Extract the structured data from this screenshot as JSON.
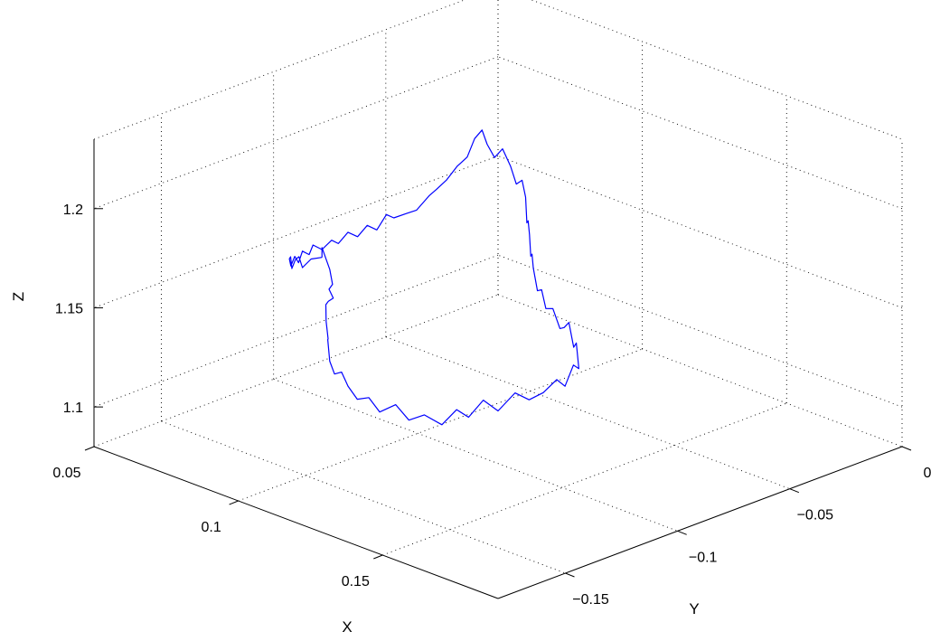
{
  "chart_data": {
    "type": "line",
    "projection": "3d",
    "grid": true,
    "xlabel": "X",
    "ylabel": "Y",
    "zlabel": "Z",
    "xlim": [
      0.05,
      0.19
    ],
    "ylim": [
      -0.18,
      0
    ],
    "zlim": [
      1.08,
      1.235
    ],
    "x_ticks": [
      {
        "value": 0.05,
        "label": "0.05"
      },
      {
        "value": 0.1,
        "label": "0.1"
      },
      {
        "value": 0.15,
        "label": "0.15"
      }
    ],
    "y_ticks": [
      {
        "value": -0.15,
        "label": "−0.15"
      },
      {
        "value": -0.1,
        "label": "−0.1"
      },
      {
        "value": -0.05,
        "label": "−0.05"
      },
      {
        "value": 0,
        "label": "0"
      }
    ],
    "z_ticks": [
      {
        "value": 1.1,
        "label": "1.1"
      },
      {
        "value": 1.15,
        "label": "1.15"
      },
      {
        "value": 1.2,
        "label": "1.2"
      }
    ],
    "series": [
      {
        "color": "#0000ff",
        "x": [
          0.08,
          0.08,
          0.085,
          0.086,
          0.084,
          0.087,
          0.083,
          0.086,
          0.09,
          0.093,
          0.096,
          0.099,
          0.103,
          0.107,
          0.11,
          0.114,
          0.118,
          0.121,
          0.125,
          0.128,
          0.131,
          0.134,
          0.136,
          0.137,
          0.139,
          0.141,
          0.143,
          0.144,
          0.145,
          0.145,
          0.144,
          0.143,
          0.141,
          0.137,
          0.133,
          0.129,
          0.125,
          0.122,
          0.118,
          0.114,
          0.111,
          0.108,
          0.105,
          0.103,
          0.101,
          0.099,
          0.097,
          0.095,
          0.093,
          0.091,
          0.089,
          0.087,
          0.085,
          0.083,
          0.082,
          0.081,
          0.08,
          0.079,
          0.077,
          0.075,
          0.073,
          0.072,
          0.07,
          0.068,
          0.066,
          0.065,
          0.064,
          0.063,
          0.062,
          0.061,
          0.06,
          0.06,
          0.059,
          0.059,
          0.06,
          0.06,
          0.061,
          0.062,
          0.063,
          0.064,
          0.066,
          0.068,
          0.07,
          0.072,
          0.074,
          0.077,
          0.08
        ],
        "y": [
          -0.117,
          -0.117,
          -0.12,
          -0.12,
          -0.119,
          -0.121,
          -0.118,
          -0.123,
          -0.128,
          -0.131,
          -0.135,
          -0.138,
          -0.141,
          -0.143,
          -0.144,
          -0.145,
          -0.145,
          -0.144,
          -0.142,
          -0.14,
          -0.137,
          -0.133,
          -0.129,
          -0.125,
          -0.121,
          -0.117,
          -0.112,
          -0.107,
          -0.102,
          -0.096,
          -0.091,
          -0.086,
          -0.081,
          -0.077,
          -0.073,
          -0.07,
          -0.067,
          -0.065,
          -0.063,
          -0.061,
          -0.059,
          -0.057,
          -0.055,
          -0.053,
          -0.051,
          -0.049,
          -0.047,
          -0.045,
          -0.043,
          -0.042,
          -0.042,
          -0.042,
          -0.043,
          -0.044,
          -0.046,
          -0.047,
          -0.049,
          -0.051,
          -0.053,
          -0.055,
          -0.057,
          -0.059,
          -0.062,
          -0.064,
          -0.067,
          -0.069,
          -0.072,
          -0.075,
          -0.078,
          -0.081,
          -0.084,
          -0.087,
          -0.09,
          -0.094,
          -0.097,
          -0.1,
          -0.103,
          -0.106,
          -0.109,
          -0.111,
          -0.113,
          -0.115,
          -0.116,
          -0.117,
          -0.118,
          -0.118,
          -0.117
        ],
        "z": [
          1.165,
          1.17,
          1.163,
          1.156,
          1.152,
          1.15,
          1.145,
          1.147,
          1.143,
          1.137,
          1.14,
          1.132,
          1.129,
          1.133,
          1.128,
          1.124,
          1.127,
          1.121,
          1.126,
          1.119,
          1.122,
          1.117,
          1.124,
          1.119,
          1.127,
          1.121,
          1.129,
          1.124,
          1.126,
          1.13,
          1.124,
          1.132,
          1.127,
          1.136,
          1.13,
          1.139,
          1.133,
          1.13,
          1.137,
          1.134,
          1.141,
          1.138,
          1.147,
          1.152,
          1.149,
          1.158,
          1.163,
          1.16,
          1.171,
          1.178,
          1.175,
          1.183,
          1.191,
          1.186,
          1.193,
          1.2,
          1.196,
          1.187,
          1.182,
          1.175,
          1.17,
          1.167,
          1.16,
          1.158,
          1.156,
          1.158,
          1.151,
          1.154,
          1.149,
          1.152,
          1.147,
          1.15,
          1.146,
          1.15,
          1.147,
          1.15,
          1.146,
          1.151,
          1.148,
          1.153,
          1.156,
          1.152,
          1.158,
          1.161,
          1.157,
          1.163,
          1.165
        ]
      }
    ]
  }
}
